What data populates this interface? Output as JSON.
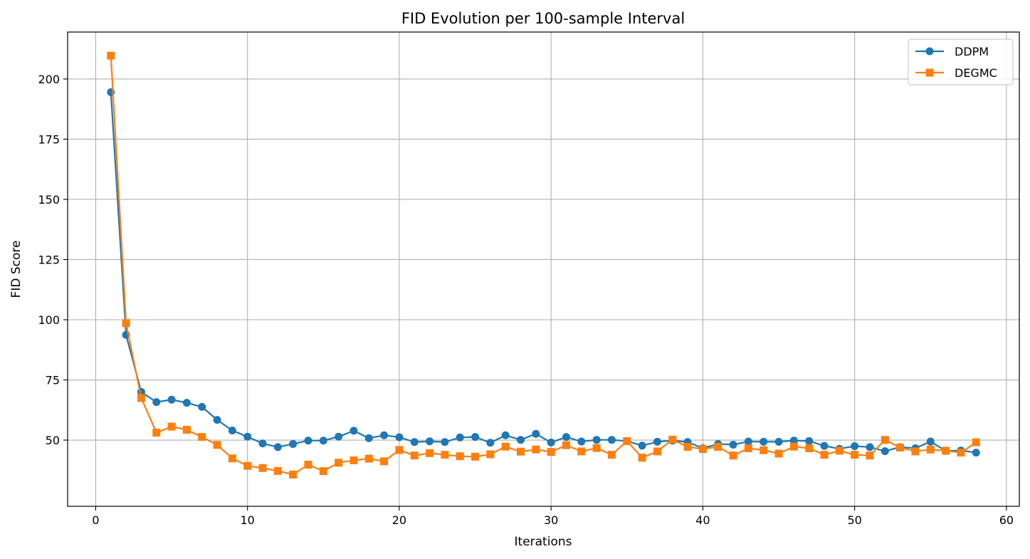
{
  "chart_data": {
    "type": "line",
    "title": "FID Evolution per 100-sample Interval",
    "xlabel": "Iterations",
    "ylabel": "FID Score",
    "xlim": [
      -1.85,
      60.85
    ],
    "ylim": [
      22.5,
      219.5
    ],
    "xticks": [
      0,
      10,
      20,
      30,
      40,
      50,
      60
    ],
    "yticks": [
      50,
      75,
      100,
      125,
      150,
      175,
      200
    ],
    "grid": true,
    "legend_position": "top-right",
    "x": [
      1,
      2,
      3,
      4,
      5,
      6,
      7,
      8,
      9,
      10,
      11,
      12,
      13,
      14,
      15,
      16,
      17,
      18,
      19,
      20,
      21,
      22,
      23,
      24,
      25,
      26,
      27,
      28,
      29,
      30,
      31,
      32,
      33,
      34,
      35,
      36,
      37,
      38,
      39,
      40,
      41,
      42,
      43,
      44,
      45,
      46,
      47,
      48,
      49,
      50,
      51,
      52,
      53,
      54,
      55,
      56,
      57,
      58
    ],
    "series": [
      {
        "name": "DDPM",
        "color": "#1f77b4",
        "marker": "circle",
        "values": [
          194.5,
          93.7,
          70.0,
          65.8,
          66.8,
          65.5,
          63.8,
          58.4,
          54.0,
          51.4,
          48.6,
          47.1,
          48.4,
          49.8,
          49.8,
          51.4,
          53.9,
          50.8,
          52.0,
          51.2,
          49.2,
          49.5,
          49.2,
          51.1,
          51.3,
          48.9,
          52.0,
          50.1,
          52.6,
          49.0,
          51.3,
          49.4,
          50.1,
          50.1,
          49.6,
          47.7,
          49.3,
          49.8,
          49.2,
          46.6,
          48.4,
          48.1,
          49.4,
          49.3,
          49.3,
          49.8,
          49.6,
          47.6,
          46.4,
          47.5,
          47.1,
          45.4,
          47.1,
          46.6,
          49.4,
          45.5,
          45.7,
          44.8
        ]
      },
      {
        "name": "DEGMC",
        "color": "#ff7f0e",
        "marker": "square",
        "values": [
          209.7,
          98.6,
          67.5,
          53.1,
          55.6,
          54.3,
          51.3,
          48.0,
          42.4,
          39.3,
          38.4,
          37.2,
          35.7,
          39.8,
          37.1,
          40.6,
          41.6,
          42.3,
          41.2,
          45.9,
          43.6,
          44.6,
          43.9,
          43.3,
          43.1,
          44.1,
          47.3,
          45.2,
          46.1,
          45.1,
          47.9,
          45.3,
          46.7,
          43.9,
          49.6,
          42.7,
          45.3,
          50.2,
          47.2,
          46.3,
          47.2,
          43.6,
          46.6,
          45.8,
          44.4,
          47.3,
          46.6,
          43.9,
          45.6,
          43.9,
          43.6,
          50.1,
          46.9,
          45.3,
          46.1,
          45.6,
          44.8,
          49.1
        ]
      }
    ]
  }
}
